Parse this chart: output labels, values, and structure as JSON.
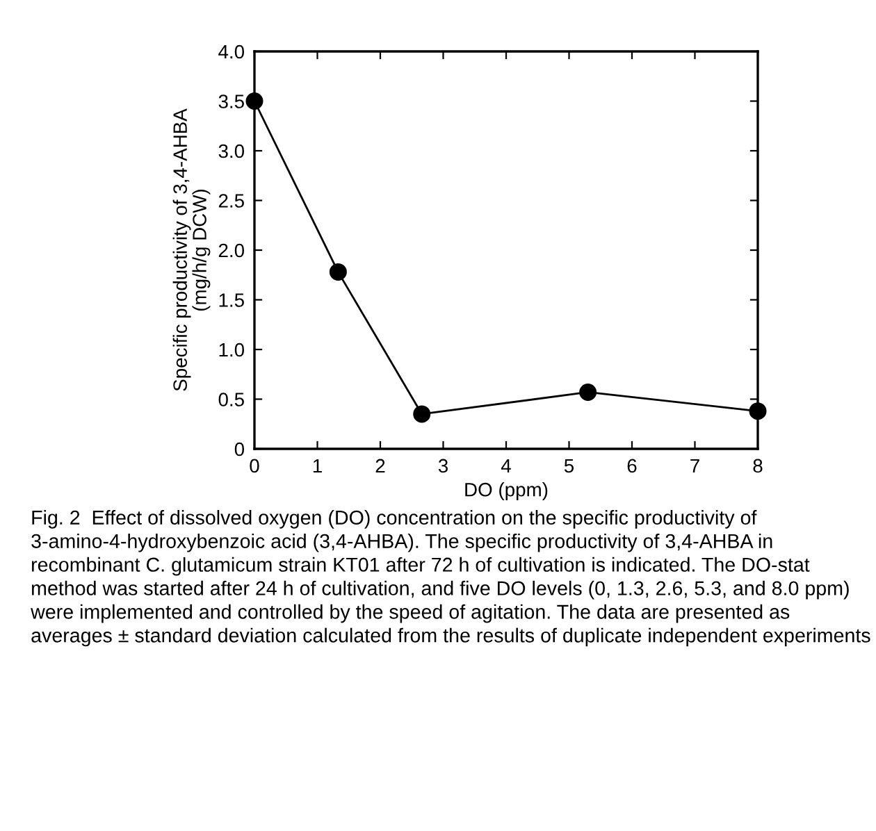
{
  "chart_data": {
    "type": "line",
    "xlabel": "DO (ppm)",
    "ylabel": "Specific productivity of 3,4-AHBA\n(mg/h/g DCW)",
    "x": [
      0,
      1.33,
      2.66,
      5.3,
      8
    ],
    "series": [
      {
        "color": "#000000",
        "values": [
          3.5,
          1.78,
          0.35,
          0.57,
          0.38
        ]
      }
    ],
    "marker": "circle",
    "line_style": "solid",
    "grid": false,
    "xlim": [
      0,
      8
    ],
    "xticks": [
      0,
      1,
      2,
      3,
      4,
      5,
      6,
      7,
      8
    ],
    "ylim": [
      0,
      4.0
    ],
    "yticks": [
      0,
      {
        "value": 0.5,
        "label": "0.5"
      },
      {
        "value": 1.0,
        "label": "1.0"
      },
      {
        "value": 1.5,
        "label": "1.5"
      },
      {
        "value": 2.0,
        "label": "2.0"
      },
      {
        "value": 2.5,
        "label": "2.5"
      },
      {
        "value": 3.0,
        "label": "3.0"
      },
      {
        "value": 3.5,
        "label": "3.5"
      },
      {
        "value": 4.0,
        "label": "4.0"
      }
    ],
    "annotations": [
      "Fig. 2  Effect of dissolved oxygen (DO) concentration on the specific productivity of 3-amino-4-hydroxybenzoic acid (3,4-AHBA). The specific productivity of 3,4-AHBA in recombinant C. glutamicum strain KT01 after 72 h of cultivation is indicated. The DO-stat method was started after 24 h of cultivation, and five DO levels (0, 1.3, 2.6, 5.3, and 8.0 ppm) were implemented and controlled by the speed of agitation. The data are presented as averages ± standard deviation calculated from the results of duplicate independent experiments"
    ]
  }
}
